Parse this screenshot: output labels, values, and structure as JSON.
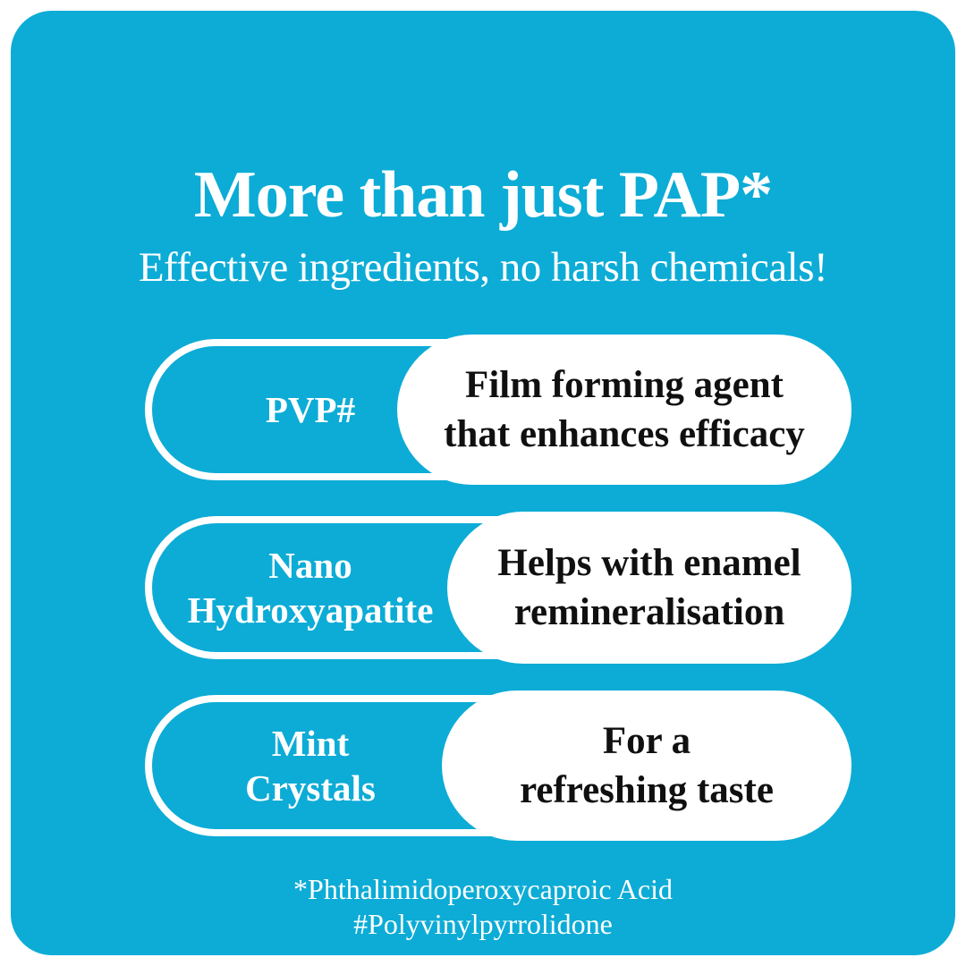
{
  "colors": {
    "canvas_background": "#ffffff",
    "card_background": "#0CACD6",
    "light_text": "#ffffff",
    "dark_text": "#101010"
  },
  "header": {
    "title": "More than just PAP*",
    "subtitle": "Effective ingredients, no harsh chemicals!"
  },
  "ingredients": [
    {
      "label": "PVP#",
      "benefit": "Film forming agent\nthat enhances efficacy"
    },
    {
      "label": "Nano\nHydroxyapatite",
      "benefit": "Helps with enamel\nremineralisation"
    },
    {
      "label": "Mint\nCrystals",
      "benefit": "For a\nrefreshing taste"
    }
  ],
  "footnotes": {
    "line1": "*Phthalimidoperoxycaproic Acid",
    "line2": "#Polyvinylpyrrolidone"
  }
}
